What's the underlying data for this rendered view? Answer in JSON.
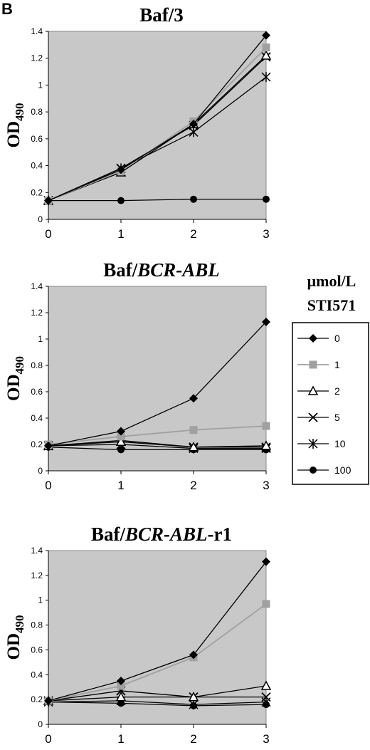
{
  "panel_letter": "B",
  "legend": {
    "header_line1": "μmol/L",
    "header_line2": "STI571"
  },
  "series_styles": [
    {
      "marker": "diamond",
      "color": "#000000"
    },
    {
      "marker": "square",
      "color": "#a0a0a0"
    },
    {
      "marker": "triangle",
      "color": "#000000"
    },
    {
      "marker": "x",
      "color": "#000000"
    },
    {
      "marker": "star",
      "color": "#000000"
    },
    {
      "marker": "circle",
      "color": "#000000"
    }
  ],
  "chart_data": [
    {
      "type": "line",
      "title": "Baf/3",
      "title_parts": [
        {
          "text": "Baf/3",
          "italic": false
        }
      ],
      "ylabel": "OD",
      "ylabel_sub": "490",
      "x": [
        0,
        1,
        2,
        3
      ],
      "xlim": [
        0,
        3
      ],
      "ylim": [
        0,
        1.4
      ],
      "yticks": [
        "0",
        "0.2",
        "0.4",
        "0.6",
        "0.8",
        "1",
        "1.2",
        "1.4"
      ],
      "xticks": [
        "0",
        "1",
        "2",
        "3"
      ],
      "series": [
        {
          "name": "0",
          "values": [
            0.14,
            0.37,
            0.71,
            1.37
          ]
        },
        {
          "name": "1",
          "values": [
            0.14,
            0.36,
            0.73,
            1.28
          ]
        },
        {
          "name": "2",
          "values": [
            0.14,
            0.35,
            0.71,
            1.22
          ]
        },
        {
          "name": "5",
          "values": [
            0.14,
            0.38,
            0.7,
            1.21
          ]
        },
        {
          "name": "10",
          "values": [
            0.14,
            0.38,
            0.65,
            1.06
          ]
        },
        {
          "name": "100",
          "values": [
            0.14,
            0.14,
            0.15,
            0.15
          ]
        }
      ]
    },
    {
      "type": "line",
      "title": "Baf/BCR-ABL",
      "title_parts": [
        {
          "text": "Baf/",
          "italic": false
        },
        {
          "text": "BCR-ABL",
          "italic": true
        }
      ],
      "ylabel": "OD",
      "ylabel_sub": "490",
      "x": [
        0,
        1,
        2,
        3
      ],
      "xlim": [
        0,
        3
      ],
      "ylim": [
        0,
        1.4
      ],
      "yticks": [
        "0",
        "0.2",
        "0.4",
        "0.6",
        "0.8",
        "1",
        "1.2",
        "1.4"
      ],
      "xticks": [
        "0",
        "1",
        "2",
        "3"
      ],
      "series": [
        {
          "name": "0",
          "values": [
            0.19,
            0.3,
            0.55,
            1.13
          ]
        },
        {
          "name": "1",
          "values": [
            0.2,
            0.26,
            0.31,
            0.34
          ]
        },
        {
          "name": "2",
          "values": [
            0.19,
            0.22,
            0.18,
            0.19
          ]
        },
        {
          "name": "5",
          "values": [
            0.19,
            0.23,
            0.18,
            0.18
          ]
        },
        {
          "name": "10",
          "values": [
            0.19,
            0.2,
            0.17,
            0.17
          ]
        },
        {
          "name": "100",
          "values": [
            0.18,
            0.16,
            0.16,
            0.16
          ]
        }
      ]
    },
    {
      "type": "line",
      "title": "Baf/BCR-ABL-r1",
      "title_parts": [
        {
          "text": "Baf/",
          "italic": false
        },
        {
          "text": "BCR-ABL",
          "italic": true
        },
        {
          "text": "-r1",
          "italic": false
        }
      ],
      "ylabel": "OD",
      "ylabel_sub": "490",
      "x": [
        0,
        1,
        2,
        3
      ],
      "xlim": [
        0,
        3
      ],
      "ylim": [
        0,
        1.4
      ],
      "yticks": [
        "0",
        "0.2",
        "0.4",
        "0.6",
        "0.8",
        "1",
        "1.2",
        "1.4"
      ],
      "xticks": [
        "0",
        "1",
        "2",
        "3"
      ],
      "series": [
        {
          "name": "0",
          "values": [
            0.19,
            0.35,
            0.56,
            1.31
          ]
        },
        {
          "name": "1",
          "values": [
            0.19,
            0.31,
            0.54,
            0.97
          ]
        },
        {
          "name": "2",
          "values": [
            0.19,
            0.22,
            0.22,
            0.31
          ]
        },
        {
          "name": "5",
          "values": [
            0.19,
            0.27,
            0.22,
            0.22
          ]
        },
        {
          "name": "10",
          "values": [
            0.18,
            0.19,
            0.16,
            0.18
          ]
        },
        {
          "name": "100",
          "values": [
            0.18,
            0.17,
            0.15,
            0.16
          ]
        }
      ]
    }
  ]
}
